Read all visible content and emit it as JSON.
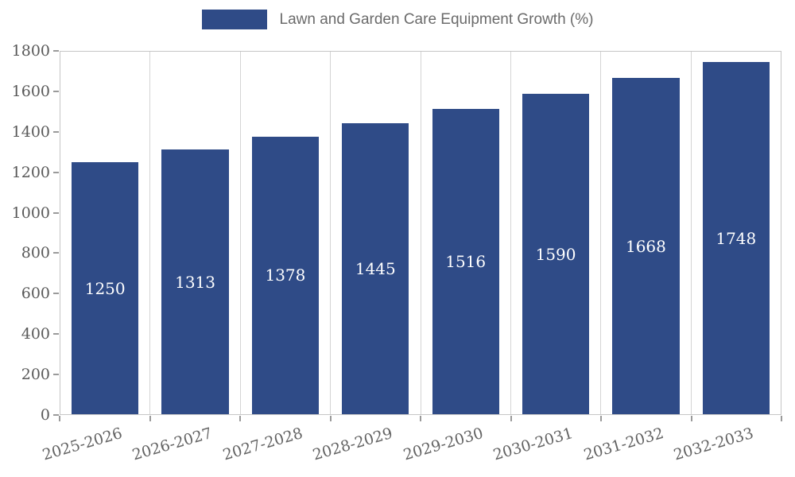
{
  "chart_data": {
    "type": "bar",
    "title": "Lawn and Garden Care Equipment Growth (%)",
    "categories": [
      "2025-2026",
      "2026-2027",
      "2027-2028",
      "2028-2029",
      "2029-2030",
      "2030-2031",
      "2031-2032",
      "2032-2033"
    ],
    "values": [
      1250,
      1313,
      1378,
      1445,
      1516,
      1590,
      1668,
      1748
    ],
    "xlabel": "",
    "ylabel": "",
    "ylim": [
      0,
      1800
    ],
    "yticks": [
      0,
      200,
      400,
      600,
      800,
      1000,
      1200,
      1400,
      1600,
      1800
    ],
    "bar_color": "#2f4b87",
    "value_label_color": "#ffffff",
    "grid": "vertical",
    "legend_position": "top"
  },
  "legend": {
    "label": "Lawn and Garden Care Equipment Growth (%)"
  }
}
